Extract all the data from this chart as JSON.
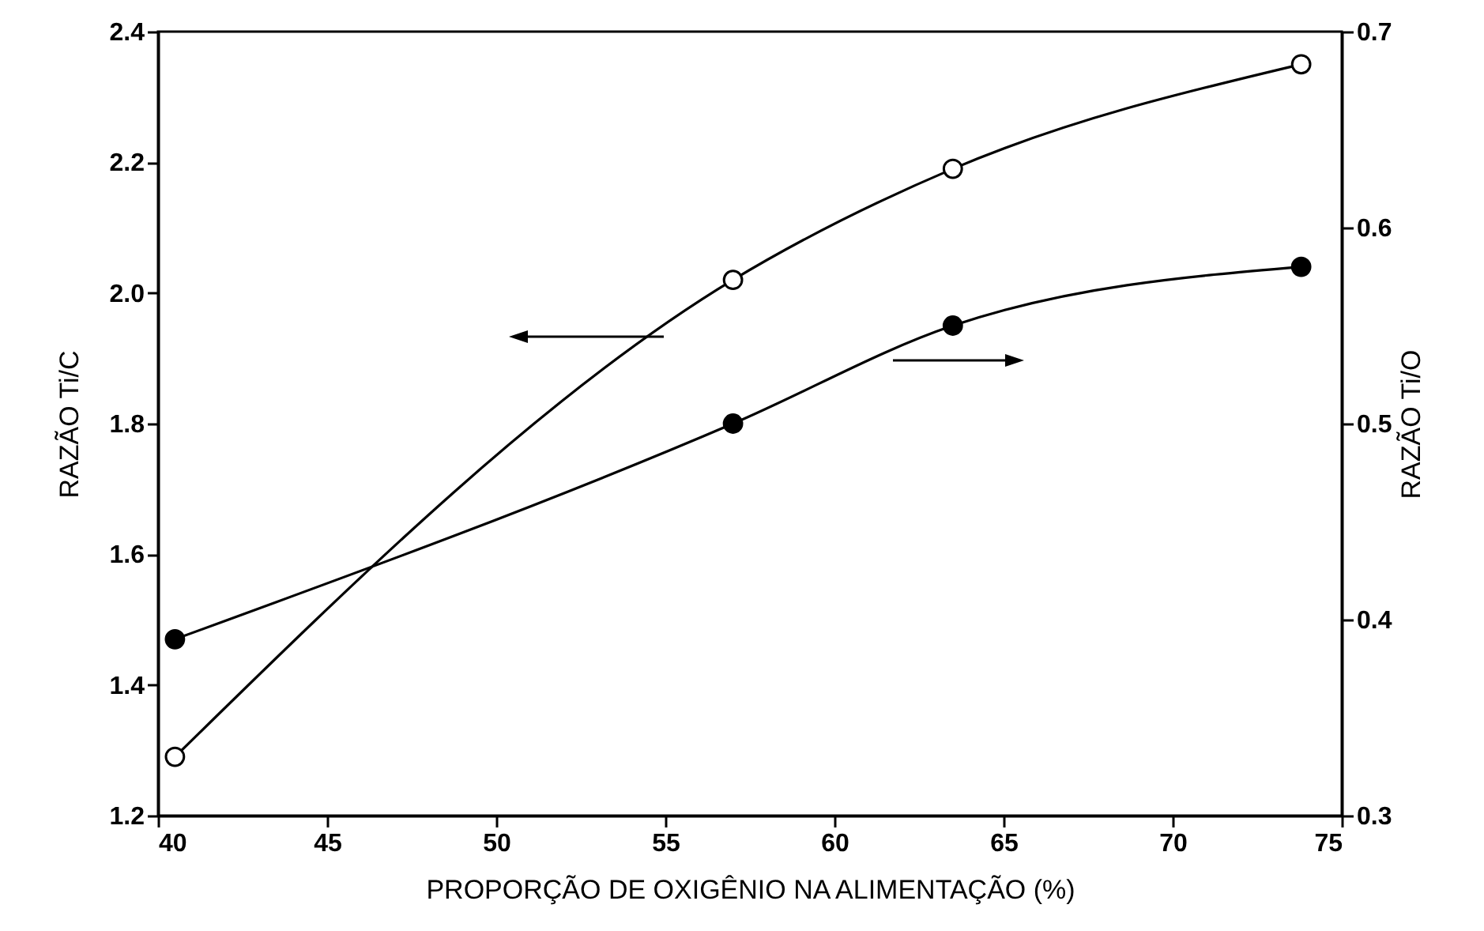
{
  "chart_data": {
    "type": "line",
    "xlabel": "PROPORÇÃO DE OXIGÊNIO NA ALIMENTAÇÃO (%)",
    "ylabel": "RAZÃO Ti/C",
    "y2label": "RAZÃO Ti/O",
    "xlim": [
      40,
      75
    ],
    "xticks": [
      40,
      45,
      50,
      55,
      60,
      65,
      70,
      75
    ],
    "ylim": [
      1.2,
      2.4
    ],
    "yticks": [
      1.2,
      1.4,
      1.6,
      1.8,
      {
        "value": 2,
        "label": "2.0"
      },
      2.2,
      2.4
    ],
    "y2lim": [
      0.3,
      0.7
    ],
    "y2ticks": [
      0.3,
      0.4,
      0.5,
      0.6,
      0.7
    ],
    "grid": false,
    "marker": "circle",
    "line_style": "solid",
    "series": [
      {
        "color": "#000000",
        "x": [
          40.5,
          57,
          63.5,
          73.8
        ],
        "values": [
          1.29,
          2.02,
          2.19,
          2.35
        ]
      },
      {
        "color": "#000000",
        "axis": "y2",
        "x": [
          40.5,
          57,
          63.5,
          73.8
        ],
        "values": [
          0.39,
          0.5,
          0.55,
          0.58
        ]
      }
    ]
  }
}
